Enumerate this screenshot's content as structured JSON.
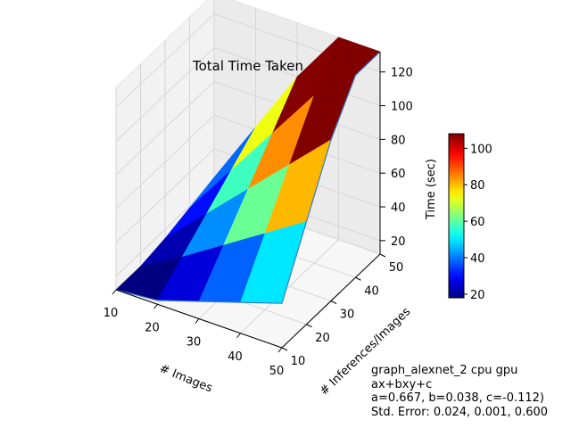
{
  "chart_data": {
    "type": "surface3d",
    "title": "Total Time Taken",
    "xlabel": "# Images",
    "ylabel": "# Inferences/Images",
    "zlabel": "Time (sec)",
    "x": [
      10,
      20,
      30,
      40,
      50
    ],
    "y": [
      10,
      20,
      30,
      40,
      50
    ],
    "x_ticks": [
      "10",
      "20",
      "30",
      "40",
      "50"
    ],
    "y_ticks": [
      "10",
      "20",
      "30",
      "40",
      "50"
    ],
    "z_ticks": [
      "20",
      "40",
      "60",
      "80",
      "100",
      "120"
    ],
    "zlim": [
      12,
      132
    ],
    "z": [
      [
        6.3,
        10.5,
        14.7,
        18.9,
        23.1
      ],
      [
        14.3,
        26.1,
        37.9,
        49.7,
        61.5
      ],
      [
        22.3,
        41.7,
        61.1,
        80.5,
        99.9
      ],
      [
        30.3,
        57.3,
        84.3,
        111.3,
        138.3
      ],
      [
        38.3,
        72.9,
        107.5,
        142.1,
        176.7
      ]
    ],
    "colorbar": {
      "min": 18,
      "max": 108,
      "ticks": [
        "20",
        "40",
        "60",
        "80",
        "100"
      ],
      "colormap": "jet"
    },
    "grid": true
  },
  "annotation": {
    "line1": "graph_alexnet_2 cpu gpu",
    "line2": "ax+bxy+c",
    "line3": "a=0.667, b=0.038, c=-0.112)",
    "line4": "Std. Error: 0.024, 0.001, 0.600"
  }
}
